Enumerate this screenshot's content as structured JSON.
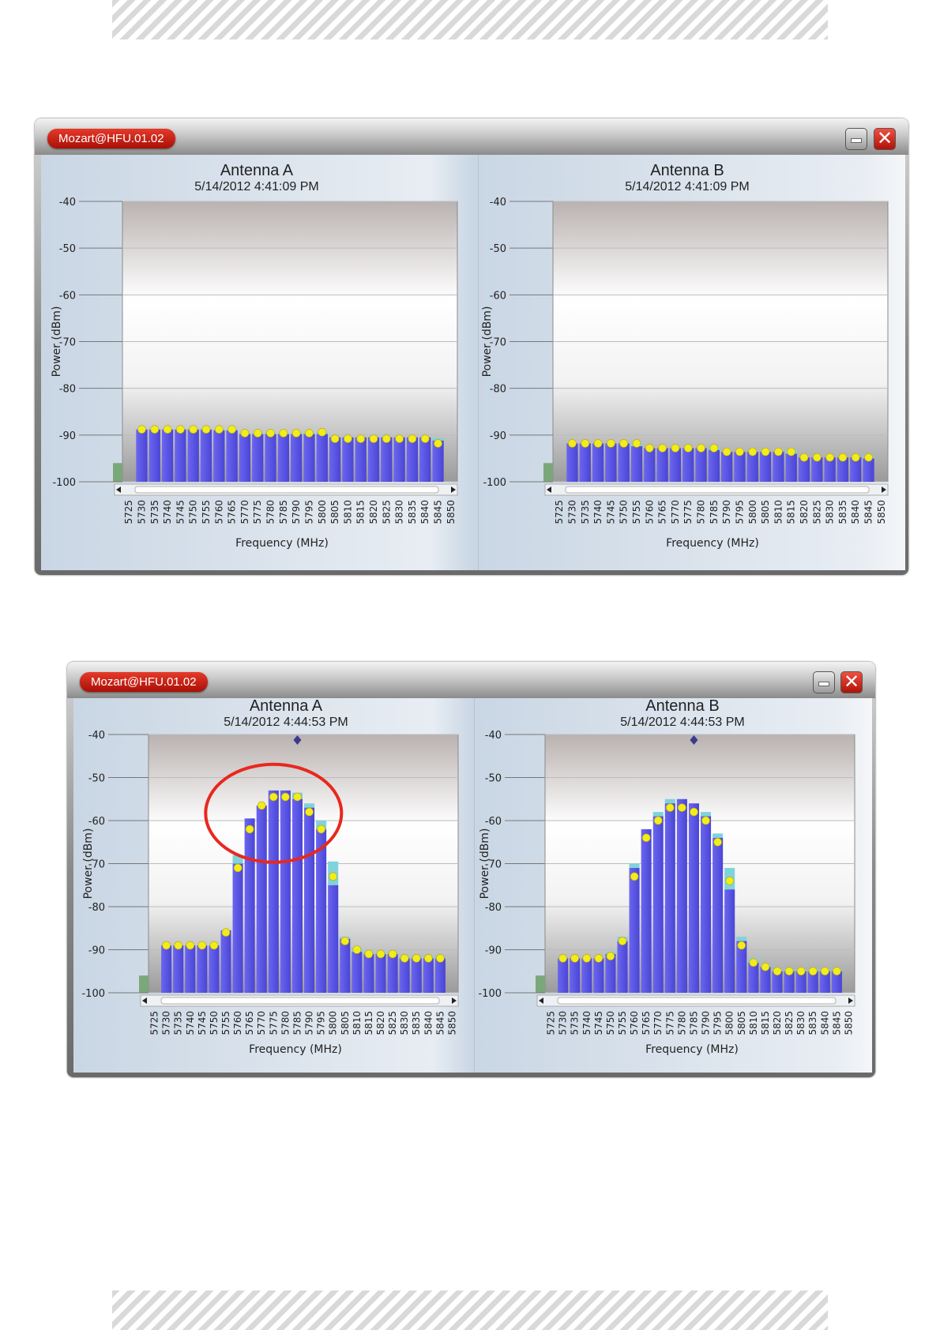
{
  "window_title": "Mozart@HFU.01.02",
  "x_axis_label": "Frequency (MHz)",
  "y_axis_label": "Power (dBm)",
  "y_ticks": [
    "-40",
    "-50",
    "-60",
    "-70",
    "-80",
    "-90",
    "-100"
  ],
  "frequencies": [
    "5725",
    "5730",
    "5735",
    "5740",
    "5745",
    "5750",
    "5755",
    "5760",
    "5765",
    "5770",
    "5775",
    "5780",
    "5785",
    "5790",
    "5795",
    "5800",
    "5805",
    "5810",
    "5815",
    "5820",
    "5825",
    "5830",
    "5835",
    "5840",
    "5845",
    "5850"
  ],
  "colors": {
    "bar": "#5a55e8",
    "peak": "#7fd3dc",
    "dot": "#f2ec1c",
    "title_badge": "#c8140a"
  },
  "chart_data": [
    {
      "type": "bar",
      "title": "Antenna A",
      "subtitle": "5/14/2012 4:41:09 PM",
      "xlabel": "Frequency (MHz)",
      "ylabel": "Power (dBm)",
      "ylim": [
        -100,
        -40
      ],
      "categories": [
        "5730",
        "5735",
        "5740",
        "5745",
        "5750",
        "5755",
        "5760",
        "5765",
        "5770",
        "5775",
        "5780",
        "5785",
        "5790",
        "5795",
        "5800",
        "5805",
        "5810",
        "5815",
        "5820",
        "5825",
        "5830",
        "5835",
        "5840",
        "5845"
      ],
      "series": [
        {
          "values": [
            -88.8,
            -88.8,
            -88.8,
            -88.8,
            -88.8,
            -88.8,
            -89.0,
            -89.0,
            -89.8,
            -89.8,
            -89.8,
            -89.8,
            -89.8,
            -89.8,
            -89.8,
            -90.5,
            -90.5,
            -90.5,
            -90.5,
            -90.5,
            -90.5,
            -90.5,
            -90.5,
            -91.2
          ]
        },
        {
          "values": [
            -88.8,
            -88.8,
            -88.8,
            -88.8,
            -88.8,
            -88.8,
            -88.8,
            -88.8,
            -89.6,
            -89.6,
            -89.6,
            -89.6,
            -89.6,
            -89.6,
            -89.4,
            -90.4,
            -90.4,
            -90.4,
            -90.4,
            -90.4,
            -90.4,
            -90.4,
            -90.4,
            -90.6
          ]
        },
        {
          "values": [
            -88.8,
            -88.8,
            -88.8,
            -88.8,
            -88.8,
            -88.8,
            -88.8,
            -88.8,
            -89.6,
            -89.6,
            -89.6,
            -89.6,
            -89.6,
            -89.6,
            -89.4,
            -90.8,
            -90.8,
            -90.8,
            -90.8,
            -90.8,
            -90.8,
            -90.8,
            -90.8,
            -91.8
          ]
        }
      ]
    },
    {
      "type": "bar",
      "title": "Antenna B",
      "subtitle": "5/14/2012 4:41:09 PM",
      "xlabel": "Frequency (MHz)",
      "ylabel": "Power (dBm)",
      "ylim": [
        -100,
        -40
      ],
      "categories": [
        "5730",
        "5735",
        "5740",
        "5745",
        "5750",
        "5755",
        "5760",
        "5765",
        "5770",
        "5775",
        "5780",
        "5785",
        "5790",
        "5795",
        "5800",
        "5805",
        "5810",
        "5815",
        "5820",
        "5825",
        "5830",
        "5835",
        "5840",
        "5845"
      ],
      "series": [
        {
          "values": [
            -91.8,
            -91.8,
            -91.8,
            -91.8,
            -91.8,
            -92.4,
            -92.8,
            -92.8,
            -92.8,
            -92.8,
            -92.8,
            -93.2,
            -93.6,
            -93.6,
            -93.6,
            -93.6,
            -93.6,
            -94.0,
            -94.8,
            -94.8,
            -94.8,
            -94.8,
            -94.8,
            -95.0
          ]
        },
        {
          "values": [
            -91.8,
            -91.8,
            -91.8,
            -91.8,
            -91.8,
            -91.6,
            -92.8,
            -92.8,
            -92.8,
            -92.8,
            -92.8,
            -92.6,
            -93.6,
            -93.6,
            -93.6,
            -93.6,
            -93.6,
            -93.2,
            -94.8,
            -94.8,
            -94.8,
            -94.8,
            -94.8,
            -94.4
          ]
        },
        {
          "values": [
            -91.8,
            -91.8,
            -91.8,
            -91.8,
            -91.8,
            -91.8,
            -92.8,
            -92.8,
            -92.8,
            -92.8,
            -92.8,
            -92.8,
            -93.6,
            -93.6,
            -93.6,
            -93.6,
            -93.6,
            -93.6,
            -94.8,
            -94.8,
            -94.8,
            -94.8,
            -94.8,
            -94.8
          ]
        }
      ]
    },
    {
      "type": "bar",
      "title": "Antenna A",
      "subtitle": "5/14/2012 4:44:53 PM",
      "xlabel": "Frequency (MHz)",
      "ylabel": "Power (dBm)",
      "ylim": [
        -100,
        -40
      ],
      "categories": [
        "5730",
        "5735",
        "5740",
        "5745",
        "5750",
        "5755",
        "5760",
        "5765",
        "5770",
        "5775",
        "5780",
        "5785",
        "5790",
        "5795",
        "5800",
        "5805",
        "5810",
        "5815",
        "5820",
        "5825",
        "5830",
        "5835",
        "5840",
        "5845"
      ],
      "series": [
        {
          "values": [
            -89.0,
            -89.0,
            -89.0,
            -89.0,
            -89.0,
            -85.5,
            -70.0,
            -59.5,
            -56.5,
            -53.0,
            -53.0,
            -55.0,
            -57.0,
            -62.0,
            -75.0,
            -87.5,
            -90.5,
            -91.0,
            -91.0,
            -91.0,
            -92.0,
            -92.0,
            -92.0,
            -92.0
          ]
        },
        {
          "values": [
            -89.0,
            -89.0,
            -89.0,
            -89.0,
            -89.0,
            -85.5,
            -68.0,
            -59.5,
            -56.5,
            -53.0,
            -53.0,
            -53.5,
            -56.0,
            -60.0,
            -69.5,
            -87.0,
            -89.5,
            -90.5,
            -90.5,
            -90.5,
            -91.5,
            -91.5,
            -91.5,
            -91.5
          ]
        },
        {
          "values": [
            -89.0,
            -89.0,
            -89.0,
            -89.0,
            -89.0,
            -86.0,
            -71.0,
            -62.0,
            -56.5,
            -54.5,
            -54.5,
            -54.5,
            -58.0,
            -62.0,
            -73.0,
            -88.0,
            -90.0,
            -91.0,
            -91.0,
            -91.0,
            -92.0,
            -92.0,
            -92.0,
            -92.0
          ]
        }
      ]
    },
    {
      "type": "bar",
      "title": "Antenna B",
      "subtitle": "5/14/2012 4:44:53 PM",
      "xlabel": "Frequency (MHz)",
      "ylabel": "Power (dBm)",
      "ylim": [
        -100,
        -40
      ],
      "categories": [
        "5730",
        "5735",
        "5740",
        "5745",
        "5750",
        "5755",
        "5760",
        "5765",
        "5770",
        "5775",
        "5780",
        "5785",
        "5790",
        "5795",
        "5800",
        "5805",
        "5810",
        "5815",
        "5820",
        "5825",
        "5830",
        "5835",
        "5840",
        "5845"
      ],
      "series": [
        {
          "values": [
            -92.0,
            -92.0,
            -92.0,
            -92.0,
            -91.0,
            -88.0,
            -71.0,
            -62.0,
            -59.0,
            -56.0,
            -55.0,
            -56.0,
            -59.0,
            -64.0,
            -76.0,
            -88.0,
            -93.0,
            -94.0,
            -95.0,
            -95.0,
            -95.0,
            -95.0,
            -95.0,
            -95.0
          ]
        },
        {
          "values": [
            -92.0,
            -92.0,
            -92.0,
            -92.0,
            -90.5,
            -87.0,
            -70.0,
            -62.0,
            -58.0,
            -55.0,
            -55.0,
            -56.0,
            -58.0,
            -63.0,
            -71.0,
            -87.0,
            -92.0,
            -93.5,
            -94.5,
            -94.5,
            -94.5,
            -94.5,
            -94.5,
            -94.5
          ]
        },
        {
          "values": [
            -92.0,
            -92.0,
            -92.0,
            -92.0,
            -91.5,
            -88.0,
            -73.0,
            -64.0,
            -60.0,
            -57.0,
            -57.0,
            -58.0,
            -60.0,
            -65.0,
            -74.0,
            -89.0,
            -93.0,
            -94.0,
            -95.0,
            -95.0,
            -95.0,
            -95.0,
            -95.0,
            -95.0
          ]
        }
      ]
    }
  ]
}
